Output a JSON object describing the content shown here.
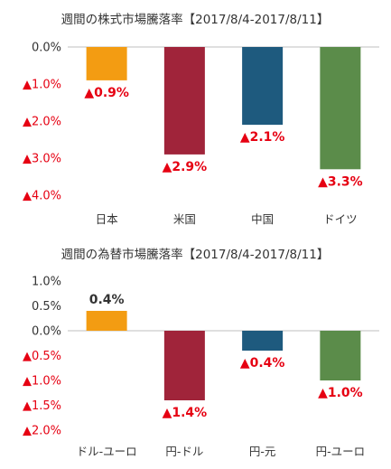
{
  "chart_data": [
    {
      "type": "bar",
      "title": "週間の株式市場騰落率【2017/8/4-2017/8/11】",
      "categories": [
        "日本",
        "米国",
        "中国",
        "ドイツ"
      ],
      "values": [
        -0.9,
        -2.9,
        -2.1,
        -3.3
      ],
      "data_labels": [
        "▲0.9%",
        "▲2.9%",
        "▲2.1%",
        "▲3.3%"
      ],
      "bar_colors": [
        "#f39c12",
        "#a0243a",
        "#1e5a7e",
        "#5b8c4a"
      ],
      "ylim": [
        -4.0,
        0.0
      ],
      "yticks": [
        {
          "value": 0.0,
          "label": "0.0%"
        },
        {
          "value": -1.0,
          "label": "▲1.0%"
        },
        {
          "value": -2.0,
          "label": "▲2.0%"
        },
        {
          "value": -3.0,
          "label": "▲3.0%"
        },
        {
          "value": -4.0,
          "label": "▲4.0%"
        }
      ],
      "grid": false
    },
    {
      "type": "bar",
      "title": "週間の為替市場騰落率【2017/8/4-2017/8/11】",
      "categories": [
        "ドル-ユーロ",
        "円-ドル",
        "円-元",
        "円-ユーロ"
      ],
      "values": [
        0.4,
        -1.4,
        -0.4,
        -1.0
      ],
      "data_labels": [
        "0.4%",
        "▲1.4%",
        "▲0.4%",
        "▲1.0%"
      ],
      "bar_colors": [
        "#f39c12",
        "#a0243a",
        "#1e5a7e",
        "#5b8c4a"
      ],
      "ylim": [
        -2.0,
        1.0
      ],
      "yticks": [
        {
          "value": 1.0,
          "label": "1.0%"
        },
        {
          "value": 0.5,
          "label": "0.5%"
        },
        {
          "value": 0.0,
          "label": "0.0%"
        },
        {
          "value": -0.5,
          "label": "▲0.5%"
        },
        {
          "value": -1.0,
          "label": "▲1.0%"
        },
        {
          "value": -1.5,
          "label": "▲1.5%"
        },
        {
          "value": -2.0,
          "label": "▲2.0%"
        }
      ],
      "grid": false
    }
  ],
  "colors": {
    "negative_text": "#e60012",
    "positive_text": "#333333",
    "axis": "#bfbfbf"
  }
}
